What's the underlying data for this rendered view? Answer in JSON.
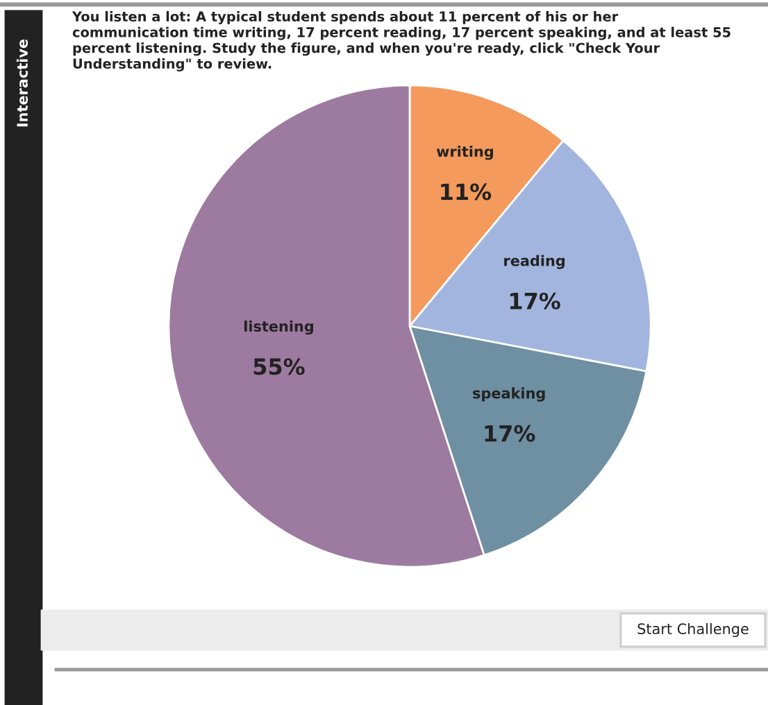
{
  "chart_data": {
    "type": "pie",
    "title": "You listen a lot: A typical student spends about 11 percent of his or her\ncommunication time writing, 17 percent reading, 17 percent speaking, and at least 55\npercent listening. Study the figure, and when you're ready, click \"Check Your\nUnderstanding\" to review.",
    "categories": [
      "writing",
      "reading",
      "speaking",
      "listening"
    ],
    "values": [
      11,
      17,
      17,
      55
    ],
    "value_labels": [
      "11%",
      "17%",
      "17%",
      "55%"
    ],
    "colors": [
      "#f39a5c",
      "#a2b5de",
      "#6f8fa2",
      "#9d7a9f"
    ],
    "annotations": [
      "Interactive",
      "Start Challenge"
    ]
  }
}
